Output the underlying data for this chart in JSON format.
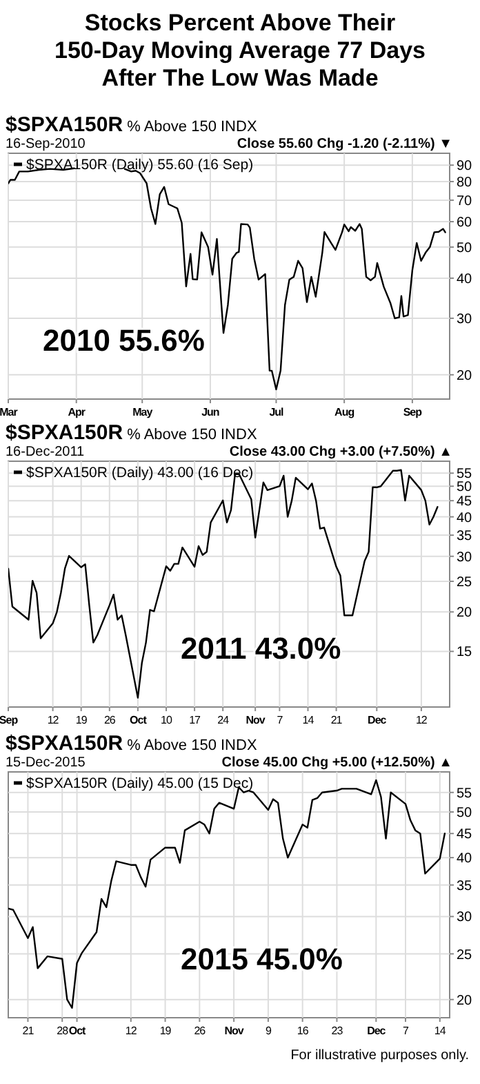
{
  "chart_data": [
    {
      "type": "line",
      "title": "Stocks Percent Above Their 150-Day Moving Average 77 Days After The Low Was Made",
      "subtitle": "$SPXA150R % Above 150 INDX",
      "annotations": [
        "16-Sep-2010",
        "Close 55.60 Chg -1.20 (-2.11%) ▼",
        "2010 55.6%"
      ],
      "log": true,
      "grid": true,
      "legend": "top left",
      "xlim": [
        "2010-03-01",
        "2010-09-18"
      ],
      "ylim": [
        16.8,
        98
      ],
      "yticks": [
        20,
        30,
        40,
        50,
        60,
        70,
        80,
        90
      ],
      "xticks": [
        {
          "value": "2010-03-01",
          "label": "Mar"
        },
        {
          "value": "2010-04-01",
          "label": "Apr"
        },
        {
          "value": "2010-05-01",
          "label": "May"
        },
        {
          "value": "2010-06-01",
          "label": "Jun"
        },
        {
          "value": "2010-07-01",
          "label": "Jul"
        },
        {
          "value": "2010-08-01",
          "label": "Aug"
        },
        {
          "value": "2010-09-01",
          "label": "Sep"
        }
      ],
      "series": [
        {
          "name": "$SPXA150R (Daily) 55.60 (16 Sep)",
          "color": "#000000",
          "x": [
            "2010-03-01",
            "2010-03-02",
            "2010-03-04",
            "2010-03-06",
            "2010-03-10",
            "2010-03-15",
            "2010-03-20",
            "2010-03-26",
            "2010-03-31",
            "2010-04-10",
            "2010-04-23",
            "2010-04-26",
            "2010-04-28",
            "2010-04-30",
            "2010-05-03",
            "2010-05-05",
            "2010-05-07",
            "2010-05-09",
            "2010-05-11",
            "2010-05-13",
            "2010-05-17",
            "2010-05-19",
            "2010-05-21",
            "2010-05-23",
            "2010-05-24",
            "2010-05-26",
            "2010-05-28",
            "2010-05-31",
            "2010-06-02",
            "2010-06-04",
            "2010-06-06",
            "2010-06-07",
            "2010-06-09",
            "2010-06-11",
            "2010-06-13",
            "2010-06-14",
            "2010-06-15",
            "2010-06-18",
            "2010-06-19",
            "2010-06-21",
            "2010-06-23",
            "2010-06-26",
            "2010-06-28",
            "2010-06-29",
            "2010-07-01",
            "2010-07-03",
            "2010-07-05",
            "2010-07-07",
            "2010-07-09",
            "2010-07-11",
            "2010-07-13",
            "2010-07-15",
            "2010-07-17",
            "2010-07-19",
            "2010-07-22",
            "2010-07-23",
            "2010-07-26",
            "2010-07-28",
            "2010-07-31",
            "2010-08-01",
            "2010-08-03",
            "2010-08-04",
            "2010-08-06",
            "2010-08-08",
            "2010-08-09",
            "2010-08-11",
            "2010-08-13",
            "2010-08-15",
            "2010-08-16",
            "2010-08-18",
            "2010-08-19",
            "2010-08-22",
            "2010-08-24",
            "2010-08-26",
            "2010-08-27",
            "2010-08-28",
            "2010-08-30",
            "2010-09-01",
            "2010-09-03",
            "2010-09-05",
            "2010-09-07",
            "2010-09-09",
            "2010-09-11",
            "2010-09-13",
            "2010-09-15",
            "2010-09-16"
          ],
          "values": [
            79,
            81,
            81,
            86,
            86,
            87,
            87.6,
            87,
            88,
            null,
            87.6,
            86,
            86.5,
            85,
            79,
            66,
            59,
            73,
            77,
            68,
            66,
            59.5,
            37.7,
            47.6,
            39.7,
            39.6,
            55.6,
            50,
            41,
            53,
            33.5,
            27,
            33,
            46,
            48,
            48.3,
            59,
            58.8,
            57.5,
            46,
            39.6,
            41.2,
            20.6,
            20.6,
            18,
            20.6,
            33,
            39.6,
            40.4,
            45.3,
            43,
            33.7,
            40.4,
            35,
            48,
            55.7,
            51.5,
            49,
            55.6,
            58.8,
            56,
            57.7,
            56.2,
            59,
            57,
            40.4,
            39.4,
            40.4,
            44.6,
            39.8,
            37.6,
            33.5,
            30,
            30.2,
            35.2,
            30.4,
            30.7,
            42.3,
            51.5,
            45.3,
            48,
            50,
            55.6,
            55.8,
            57,
            55.6
          ]
        }
      ]
    },
    {
      "type": "line",
      "subtitle": "$SPXA150R % Above 150 INDX",
      "annotations": [
        "16-Dec-2011",
        "Close 43.00 Chg +3.00 (+7.50%) ▲",
        "2011 43.0%"
      ],
      "log": true,
      "grid": true,
      "legend": "top left",
      "xlim": [
        "2011-09-01",
        "2011-12-19"
      ],
      "ylim": [
        10,
        60
      ],
      "yticks": [
        15,
        20,
        25,
        30,
        35,
        40,
        45,
        50,
        55
      ],
      "xticks": [
        {
          "value": "2011-09-01",
          "label": "Sep"
        },
        {
          "value": "2011-09-12",
          "label": "12"
        },
        {
          "value": "2011-09-19",
          "label": "19"
        },
        {
          "value": "2011-09-26",
          "label": "26"
        },
        {
          "value": "2011-10-03",
          "label": "Oct"
        },
        {
          "value": "2011-10-10",
          "label": "10"
        },
        {
          "value": "2011-10-17",
          "label": "17"
        },
        {
          "value": "2011-10-24",
          "label": "24"
        },
        {
          "value": "2011-11-01",
          "label": "Nov"
        },
        {
          "value": "2011-11-07",
          "label": "7"
        },
        {
          "value": "2011-11-14",
          "label": "14"
        },
        {
          "value": "2011-11-21",
          "label": "21"
        },
        {
          "value": "2011-12-01",
          "label": "Dec"
        },
        {
          "value": "2011-12-12",
          "label": "12"
        }
      ],
      "series": [
        {
          "name": "$SPXA150R (Daily) 43.00 (16 Dec)",
          "color": "#000000",
          "x": [
            "2011-09-01",
            "2011-09-02",
            "2011-09-06",
            "2011-09-07",
            "2011-09-08",
            "2011-09-09",
            "2011-09-12",
            "2011-09-13",
            "2011-09-14",
            "2011-09-15",
            "2011-09-16",
            "2011-09-19",
            "2011-09-20",
            "2011-09-21",
            "2011-09-22",
            "2011-09-23",
            "2011-09-26",
            "2011-09-27",
            "2011-09-28",
            "2011-09-29",
            "2011-09-30",
            "2011-10-03",
            "2011-10-04",
            "2011-10-05",
            "2011-10-06",
            "2011-10-07",
            "2011-10-10",
            "2011-10-11",
            "2011-10-12",
            "2011-10-13",
            "2011-10-14",
            "2011-10-17",
            "2011-10-18",
            "2011-10-19",
            "2011-10-20",
            "2011-10-21",
            "2011-10-24",
            "2011-10-25",
            "2011-10-26",
            "2011-10-27",
            "2011-10-28",
            "2011-10-31",
            "2011-11-01",
            "2011-11-02",
            "2011-11-03",
            "2011-11-04",
            "2011-11-07",
            "2011-11-08",
            "2011-11-09",
            "2011-11-10",
            "2011-11-11",
            "2011-11-14",
            "2011-11-15",
            "2011-11-16",
            "2011-11-17",
            "2011-11-18",
            "2011-11-21",
            "2011-11-22",
            "2011-11-23",
            "2011-11-25",
            "2011-11-28",
            "2011-11-29",
            "2011-11-30",
            "2011-12-01",
            "2011-12-02",
            "2011-12-05",
            "2011-12-06",
            "2011-12-07",
            "2011-12-08",
            "2011-12-09",
            "2011-12-12",
            "2011-12-13",
            "2011-12-14",
            "2011-12-15",
            "2011-12-16"
          ],
          "values": [
            27.4,
            20.8,
            18.9,
            25.1,
            23,
            16.5,
            18.4,
            20,
            23,
            27.5,
            30.1,
            27.7,
            28.3,
            21,
            16,
            16.9,
            21,
            22.7,
            18.9,
            19.5,
            16.9,
            10.7,
            13.8,
            16,
            20.3,
            20.1,
            27.9,
            27,
            28.4,
            28.4,
            32,
            27.8,
            32.3,
            30.3,
            31,
            38.4,
            45.1,
            38.4,
            42,
            54.6,
            54.6,
            45.5,
            34.4,
            42,
            51.4,
            48.6,
            50,
            54,
            40,
            45,
            53.2,
            48.9,
            51,
            45,
            36.7,
            37,
            27.8,
            26.1,
            19.5,
            19.5,
            29,
            31,
            49.6,
            49.6,
            50,
            56,
            56,
            56.3,
            45,
            54,
            48.6,
            45,
            37.8,
            40,
            43
          ]
        }
      ]
    },
    {
      "type": "line",
      "subtitle": "$SPXA150R % Above 150 INDX",
      "annotations": [
        "15-Dec-2015",
        "Close 45.00 Chg +5.00 (+12.50%) ▲",
        "2015 45.0%",
        "For illustrative purposes only."
      ],
      "log": true,
      "grid": true,
      "legend": "top left",
      "xlim": [
        "2015-09-17",
        "2015-12-16"
      ],
      "ylim": [
        18.3,
        60.8
      ],
      "yticks": [
        20,
        25,
        30,
        35,
        40,
        45,
        50,
        55
      ],
      "xticks": [
        {
          "value": "2015-09-21",
          "label": "21"
        },
        {
          "value": "2015-09-28",
          "label": "28"
        },
        {
          "value": "2015-10-01",
          "label": "Oct"
        },
        {
          "value": "2015-10-12",
          "label": "12"
        },
        {
          "value": "2015-10-19",
          "label": "19"
        },
        {
          "value": "2015-10-26",
          "label": "26"
        },
        {
          "value": "2015-11-02",
          "label": "Nov"
        },
        {
          "value": "2015-11-09",
          "label": "9"
        },
        {
          "value": "2015-11-16",
          "label": "16"
        },
        {
          "value": "2015-11-23",
          "label": "23"
        },
        {
          "value": "2015-12-01",
          "label": "Dec"
        },
        {
          "value": "2015-12-07",
          "label": "7"
        },
        {
          "value": "2015-12-14",
          "label": "14"
        }
      ],
      "series": [
        {
          "name": "$SPXA150R (Daily) 45.00 (15 Dec)",
          "color": "#000000",
          "x": [
            "2015-09-17",
            "2015-09-18",
            "2015-09-21",
            "2015-09-22",
            "2015-09-23",
            "2015-09-25",
            "2015-09-28",
            "2015-09-29",
            "2015-09-30",
            "2015-10-01",
            "2015-10-02",
            "2015-10-05",
            "2015-10-06",
            "2015-10-07",
            "2015-10-08",
            "2015-10-09",
            "2015-10-12",
            "2015-10-13",
            "2015-10-14",
            "2015-10-15",
            "2015-10-16",
            "2015-10-19",
            "2015-10-20",
            "2015-10-21",
            "2015-10-22",
            "2015-10-23",
            "2015-10-26",
            "2015-10-27",
            "2015-10-28",
            "2015-10-29",
            "2015-10-30",
            "2015-11-02",
            "2015-11-03",
            "2015-11-04",
            "2015-11-05",
            "2015-11-06",
            "2015-11-09",
            "2015-11-10",
            "2015-11-11",
            "2015-11-12",
            "2015-11-13",
            "2015-11-16",
            "2015-11-17",
            "2015-11-18",
            "2015-11-19",
            "2015-11-20",
            "2015-11-23",
            "2015-11-24",
            "2015-11-25",
            "2015-11-27",
            "2015-11-30",
            "2015-12-01",
            "2015-12-02",
            "2015-12-03",
            "2015-12-04",
            "2015-12-07",
            "2015-12-08",
            "2015-12-09",
            "2015-12-10",
            "2015-12-11",
            "2015-12-14",
            "2015-12-15"
          ],
          "values": [
            31.2,
            31,
            27,
            28.5,
            23.3,
            24.7,
            24.4,
            20,
            19.2,
            23.9,
            25.1,
            27.8,
            32.7,
            31.4,
            35.7,
            39.3,
            38.6,
            38.6,
            36.4,
            34.7,
            39.6,
            42,
            42,
            42,
            39,
            45.7,
            47.7,
            47,
            45,
            50.8,
            52.3,
            50.8,
            56.4,
            55,
            55.5,
            55,
            50.5,
            53.2,
            52.3,
            43.9,
            40,
            47,
            46.3,
            53,
            53.5,
            55,
            55.5,
            56,
            56,
            56,
            54.5,
            58.4,
            53.8,
            43.9,
            55,
            52,
            48,
            45.7,
            45,
            37,
            39.8,
            45
          ]
        }
      ]
    }
  ]
}
